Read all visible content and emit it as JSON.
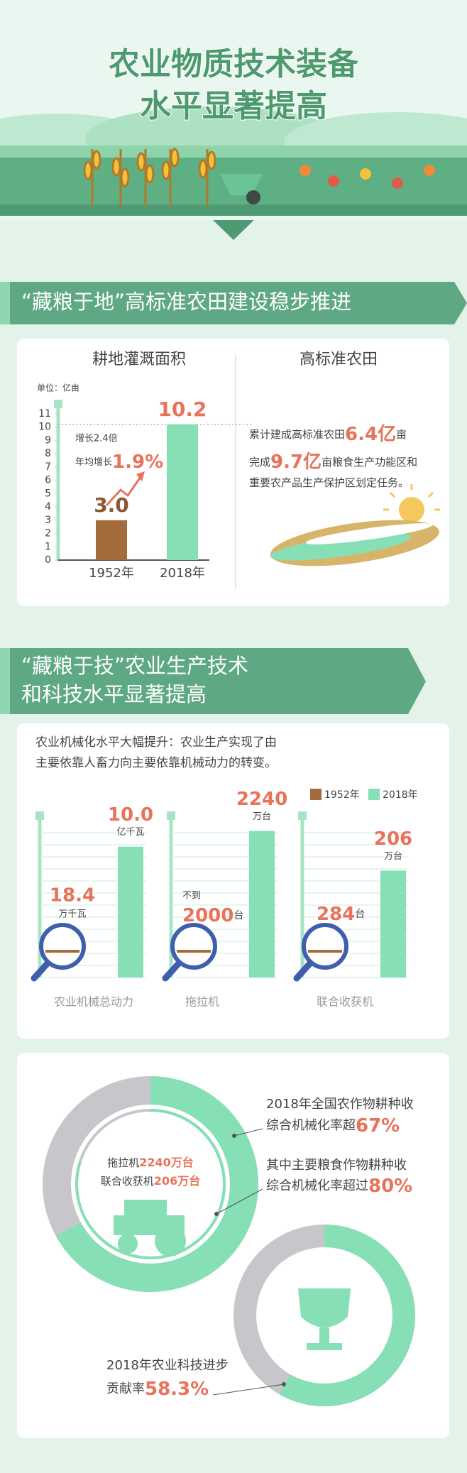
{
  "header": {
    "title_lines": [
      "农业物质技术装备",
      "水平显著提高"
    ]
  },
  "section1": {
    "banner": "“藏粮于地”高标准农田建设稳步推进",
    "farmland": {
      "title": "高标准农田",
      "lines": [
        [
          "累计建成高标准农田",
          "6.4亿",
          "亩"
        ],
        [
          "完成",
          "9.7亿",
          "亩粮食生产功能区和"
        ],
        [
          "重要农产品生产保护区划定任务。"
        ]
      ]
    }
  },
  "section2": {
    "banner_lines": [
      "“藏粮于技”农业生产技术",
      "和科技水平显著提高"
    ],
    "intro_lines": [
      "农业机械化水平大幅提升：农业生产实现了由",
      "主要依靠人畜力向主要依靠机械动力的转变。"
    ],
    "legend": [
      {
        "name": "1952年",
        "color": "#a46b3c"
      },
      {
        "name": "2018年",
        "color": "#86dfb5"
      }
    ]
  },
  "chart_data": [
    {
      "type": "bar",
      "title": "耕地灌溉面积",
      "unit_label": "单位：亿亩",
      "categories": [
        "1952年",
        "2018年"
      ],
      "values": [
        3,
        10.2
      ],
      "value_labels": [
        "3.0",
        "10.2"
      ],
      "colors": [
        "#a46b3c",
        "#86dfb5"
      ],
      "ylim": [
        0,
        11
      ],
      "yticks": [
        0,
        1,
        2,
        3,
        4,
        5,
        6,
        7,
        8,
        9,
        10,
        11
      ],
      "annotations": [
        "增长2.4倍",
        "年均增长"
      ],
      "growth_rate_label": "1.9%"
    },
    {
      "type": "mech",
      "label": "农业机械总动力",
      "values": [
        18.4,
        10
      ],
      "value_labels": [
        "18.4",
        "10.0"
      ],
      "units": [
        "万千瓦",
        "亿千瓦"
      ],
      "ylim": [
        0,
        11.5
      ]
    },
    {
      "type": "mech",
      "label": "拖拉机",
      "qualifier": "不到",
      "values": [
        2000,
        2240
      ],
      "units": [
        "台",
        "万台"
      ],
      "ylim": [
        0,
        2300
      ]
    },
    {
      "type": "mech",
      "label": "联合收获机",
      "values": [
        284,
        206
      ],
      "units": [
        "台",
        "万台"
      ],
      "ylim": [
        0,
        290
      ]
    },
    {
      "type": "donut",
      "rings": [
        {
          "value": 67,
          "label": "67%",
          "lines": [
            "2018年全国农作物耕种收",
            "综合机械化率超"
          ]
        },
        {
          "value": 80,
          "label": "80%",
          "lines": [
            "其中主要粮食作物耕种收",
            "综合机械化率超过"
          ]
        }
      ],
      "center_lines": [
        [
          "拖拉机",
          "2240万台"
        ],
        [
          "联合收获机",
          "206万台"
        ]
      ]
    },
    {
      "type": "donut",
      "rings": [
        {
          "value": 58.3,
          "label": "58.3%",
          "lines": [
            "2018年农业科技进步",
            "贡献率"
          ]
        }
      ]
    }
  ]
}
